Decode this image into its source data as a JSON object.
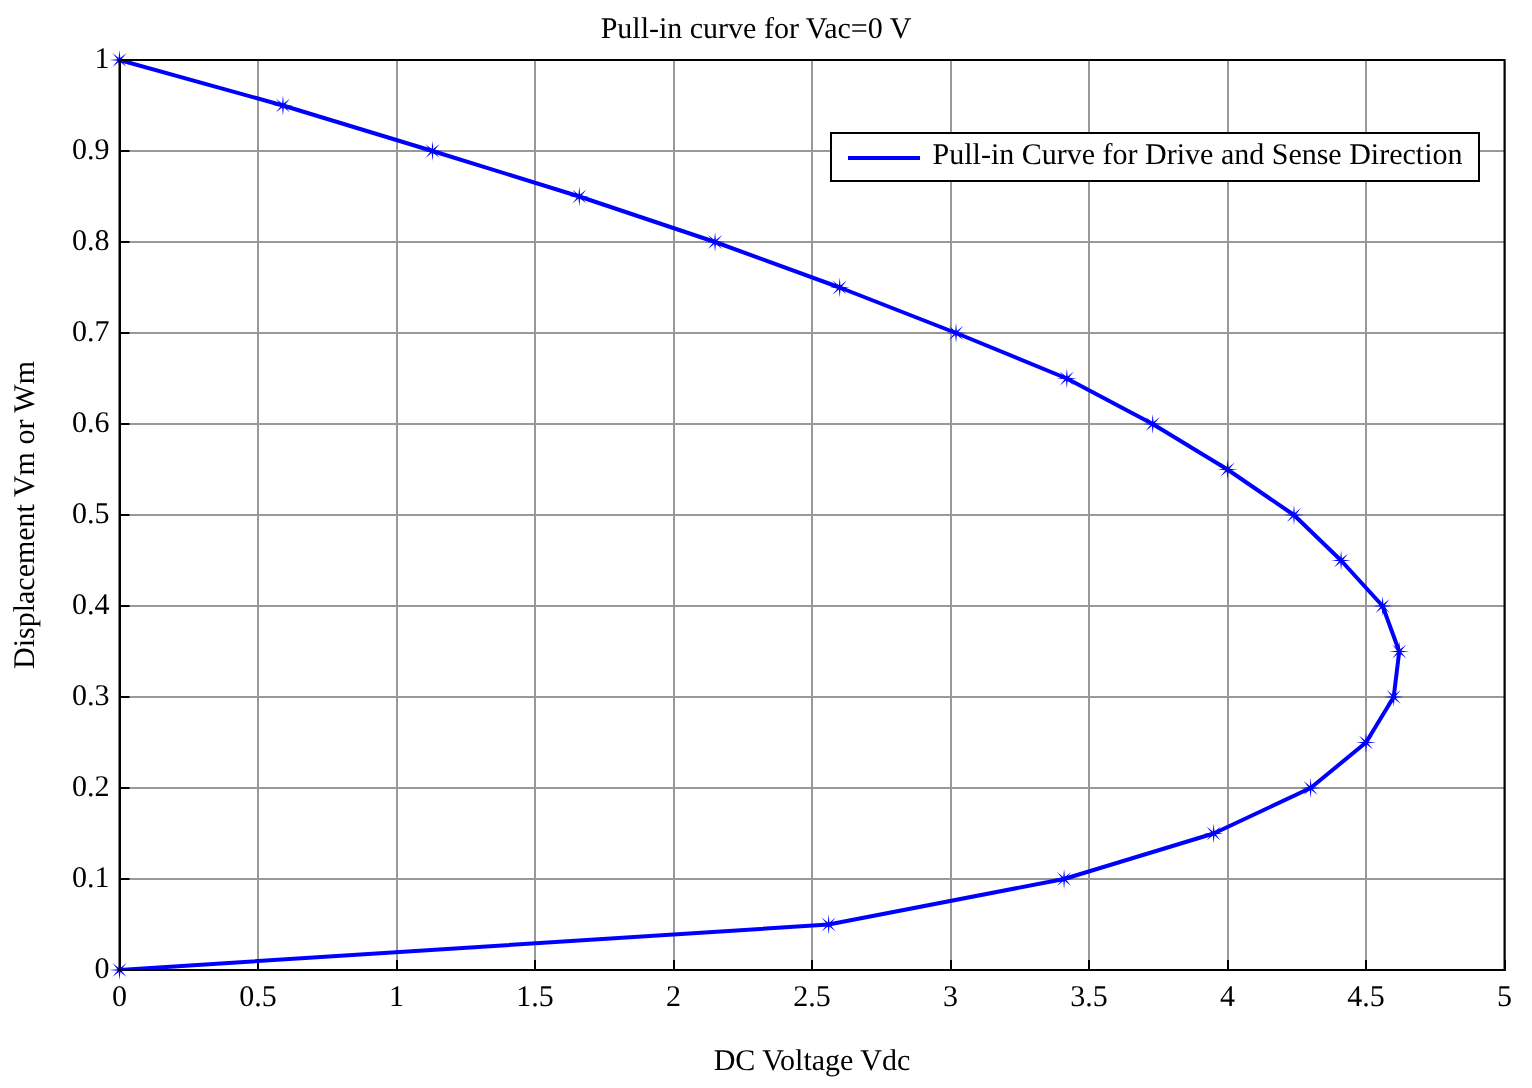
{
  "chart_data": {
    "type": "line",
    "title": "Pull-in curve for Vac=0 V",
    "xlabel": "DC Voltage Vdc",
    "ylabel": "Displacement Vm or Wm",
    "xlim": [
      0,
      5
    ],
    "xticks": [
      0,
      0.5,
      1,
      1.5,
      2,
      2.5,
      3,
      3.5,
      4,
      4.5,
      5
    ],
    "ylim": [
      0,
      1
    ],
    "yticks": [
      0,
      0.1,
      0.2,
      0.3,
      0.4,
      0.5,
      0.6,
      0.7,
      0.8,
      0.9,
      1
    ],
    "grid": true,
    "legend": "top right",
    "marker": "star",
    "line_style": "solid",
    "series": [
      {
        "name": "Pull-in Curve for Drive and Sense Direction",
        "color": "#0000ff",
        "x": [
          0,
          0.59,
          1.13,
          1.66,
          2.15,
          2.6,
          3.02,
          3.42,
          3.73,
          4.0,
          4.24,
          4.41,
          4.56,
          4.62,
          4.6,
          4.5,
          4.3,
          3.95,
          3.41,
          2.56,
          0
        ],
        "values": [
          1,
          0.95,
          0.9,
          0.85,
          0.8,
          0.75,
          0.7,
          0.65,
          0.6,
          0.55,
          0.5,
          0.45,
          0.4,
          0.35,
          0.3,
          0.25,
          0.2,
          0.15,
          0.1,
          0.05,
          0
        ]
      }
    ]
  }
}
